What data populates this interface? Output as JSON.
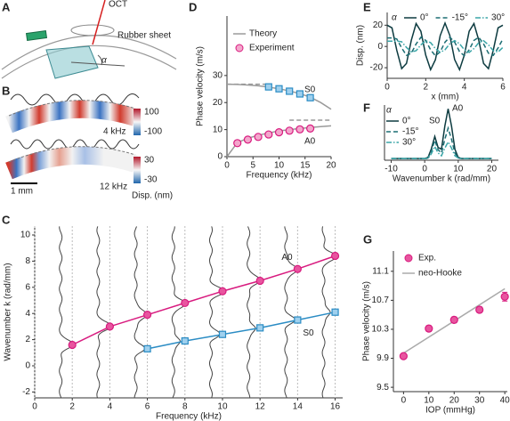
{
  "panel_labels": [
    "A",
    "B",
    "C",
    "D",
    "E",
    "F",
    "G"
  ],
  "schematic": {
    "oct": "OCT",
    "sheet": "Rubber sheet",
    "angle": "α"
  },
  "heatmaps": {
    "panels": [
      {
        "frequency": "4 kHz",
        "colorbar_max": "100",
        "colorbar_min": "-100"
      },
      {
        "frequency": "12 kHz",
        "colorbar_max": "30",
        "colorbar_min": "-30"
      }
    ],
    "scale_bar": "1 mm",
    "colorbar_label": "Disp. (nm)"
  },
  "chart_data": [
    {
      "type": "line",
      "xlabel": "Frequency (kHz)",
      "ylabel": "Wavenumber k (rad/mm)",
      "xlim": [
        0,
        16.4
      ],
      "ylim": [
        -2.45,
        10.68
      ],
      "xticks": [
        0,
        2,
        4,
        6,
        8,
        10,
        12,
        14,
        16
      ],
      "yticks": [
        -2,
        0,
        2,
        4,
        6,
        8,
        10
      ],
      "grid": "x",
      "spectra": true,
      "series": [
        {
          "name": "A0",
          "color": "#d81b7f",
          "marker": "circle",
          "marker_fill": "#e8559f",
          "line": "solid",
          "x": [
            2,
            4,
            6,
            8,
            10,
            12,
            14,
            16
          ],
          "values": [
            1.6,
            3.0,
            3.9,
            4.8,
            5.7,
            6.5,
            7.4,
            8.4
          ]
        },
        {
          "name": "S0",
          "color": "#2b8cc4",
          "marker": "square",
          "marker_fill": "#9fd0ee",
          "line": "solid",
          "x": [
            6,
            8,
            10,
            12,
            14,
            16
          ],
          "values": [
            1.3,
            1.9,
            2.4,
            2.9,
            3.5,
            4.1
          ]
        }
      ]
    },
    {
      "type": "line",
      "xlabel": "Frequency (kHz)",
      "ylabel": "Phase velocity (m/s)",
      "xlim": [
        0,
        20
      ],
      "ylim": [
        0,
        52
      ],
      "xticks": [
        0,
        5,
        10,
        15,
        20
      ],
      "yticks": [
        0,
        10,
        20,
        30
      ],
      "legend": true,
      "annotations": [
        "S0",
        "A0"
      ],
      "series": [
        {
          "name": "Theory",
          "color": "#9a9a9a",
          "line": "solid",
          "x": [
            0,
            2,
            4,
            6,
            8,
            10,
            12,
            14,
            16,
            18,
            20
          ],
          "values": [
            26.8,
            26.7,
            26.5,
            26.2,
            25.7,
            25.1,
            24.3,
            23.3,
            22.0,
            20.0,
            17.5
          ]
        },
        {
          "color": "#9a9a9a",
          "line": "solid",
          "x": [
            0,
            2,
            4,
            6,
            8,
            10,
            12,
            14,
            16,
            18,
            20
          ],
          "values": [
            0,
            5.2,
            6.8,
            7.9,
            8.8,
            9.5,
            10.0,
            10.4,
            10.8,
            11.1,
            11.4
          ]
        },
        {
          "color": "#9a9a9a",
          "line": "dashed",
          "x": [
            0,
            8
          ],
          "values": [
            26.8,
            26.8
          ]
        },
        {
          "color": "#9a9a9a",
          "line": "dashed",
          "x": [
            12,
            20
          ],
          "values": [
            13.5,
            13.5
          ]
        },
        {
          "name": "Experiment",
          "color": "#d81b7f",
          "marker": "circle",
          "marker_fill": "#f4a6cc",
          "line": "none",
          "x": [
            2,
            4,
            6,
            8,
            10,
            12,
            14,
            16
          ],
          "values": [
            5.0,
            6.3,
            7.3,
            8.2,
            9.0,
            9.6,
            10.1,
            10.4
          ]
        },
        {
          "color": "#2b8cc4",
          "marker": "square",
          "marker_fill": "#9fd0ee",
          "line": "none",
          "x": [
            8,
            10,
            12,
            14,
            16
          ],
          "values": [
            25.8,
            25.1,
            24.2,
            23.2,
            21.8
          ]
        }
      ]
    },
    {
      "type": "line",
      "xlabel": "x (mm)",
      "ylabel": "Disp. (nm)",
      "xlim": [
        0,
        6
      ],
      "ylim": [
        -30,
        32
      ],
      "xticks": [
        0,
        2,
        4,
        6
      ],
      "yticks": [
        -20,
        0,
        20
      ],
      "legend": true,
      "legend_title": "α",
      "x": [
        0,
        0.25,
        0.5,
        0.75,
        1,
        1.25,
        1.5,
        1.75,
        2,
        2.25,
        2.5,
        2.75,
        3,
        3.25,
        3.5,
        3.75,
        4,
        4.25,
        4.5,
        4.75,
        5,
        5.25,
        5.5,
        5.75,
        6
      ],
      "series": [
        {
          "name": "0°",
          "color": "#0d3b40",
          "line": "solid",
          "values": [
            20,
            17.5,
            -3.5,
            -20.9,
            -16,
            5.8,
            21.5,
            14.2,
            -8.1,
            -21.9,
            -12.5,
            10.3,
            22,
            10.3,
            -12.3,
            -21.9,
            -8.1,
            14.2,
            21.5,
            5.9,
            -16,
            -20.9,
            -3.5,
            17.5,
            20
          ]
        },
        {
          "name": "-15°",
          "color": "#1c6e74",
          "line": "dashed",
          "values": [
            8,
            8,
            7,
            -1.4,
            -8.4,
            -6.4,
            2.3,
            8.6,
            5.7,
            -3.2,
            -8.8,
            -5,
            4.1,
            8.8,
            4.1,
            -4.9,
            -8.8,
            -3.2,
            5.7,
            8.6,
            2.4,
            -6.4,
            -8.4,
            -1.4,
            7
          ]
        },
        {
          "name": "30°",
          "color": "#3aa6a8",
          "line": "dashdot",
          "values": [
            5,
            5,
            5,
            4.4,
            -0.9,
            -5.2,
            -4,
            1.5,
            5.4,
            3.6,
            -2,
            -5.5,
            -3.1,
            2.6,
            5.5,
            2.6,
            -3.1,
            -5.5,
            -2,
            3.6,
            5.4,
            1.5,
            -4,
            -5.2,
            -0.9
          ]
        }
      ]
    },
    {
      "type": "line",
      "xlabel": "Wavenumber k (rad/mm)",
      "xlim": [
        -12,
        22
      ],
      "ylim": [
        0,
        1
      ],
      "xticks": [
        -10,
        0,
        10,
        20
      ],
      "legend": true,
      "legend_title": "α",
      "annotations": [
        "S0",
        "A0"
      ],
      "x": [
        -10,
        -9,
        -8,
        -7,
        -6,
        -5,
        -4,
        -3,
        -2,
        -1,
        0,
        1,
        2,
        3,
        4,
        5,
        6,
        7,
        8,
        9,
        10,
        11,
        12,
        13,
        14,
        15,
        16,
        17,
        18,
        19,
        20
      ],
      "series": [
        {
          "name": "0°",
          "color": "#0d3b40",
          "line": "solid",
          "values": [
            0.03,
            0.03,
            0.03,
            0.03,
            0.03,
            0.03,
            0.03,
            0.03,
            0.03,
            0.03,
            0.03,
            0.05,
            0.21,
            0.43,
            0.23,
            0.2,
            0.62,
            0.93,
            0.62,
            0.2,
            0.05,
            0.03,
            0.03,
            0.03,
            0.03,
            0.03,
            0.03,
            0.03,
            0.03,
            0.03,
            0.03
          ]
        },
        {
          "name": "-15°",
          "color": "#1c6e74",
          "line": "dashed",
          "values": [
            0.03,
            0.03,
            0.03,
            0.03,
            0.03,
            0.03,
            0.03,
            0.03,
            0.03,
            0.03,
            0.03,
            0.04,
            0.17,
            0.36,
            0.19,
            0.13,
            0.38,
            0.58,
            0.38,
            0.13,
            0.04,
            0.03,
            0.03,
            0.03,
            0.03,
            0.03,
            0.03,
            0.03,
            0.03,
            0.03,
            0.03
          ]
        },
        {
          "name": "30°",
          "color": "#3aa6a8",
          "line": "dashdot",
          "values": [
            0.03,
            0.03,
            0.03,
            0.03,
            0.03,
            0.03,
            0.03,
            0.03,
            0.03,
            0.03,
            0.03,
            0.03,
            0.12,
            0.25,
            0.13,
            0.08,
            0.22,
            0.33,
            0.22,
            0.08,
            0.04,
            0.03,
            0.03,
            0.03,
            0.03,
            0.03,
            0.03,
            0.03,
            0.03,
            0.03,
            0.03
          ]
        }
      ]
    },
    {
      "type": "line",
      "xlabel": "IOP (mmHg)",
      "ylabel": "Phase velocity (m/s)",
      "xlim": [
        -4,
        41
      ],
      "ylim": [
        9.44,
        11.38
      ],
      "xticks": [
        0,
        10,
        20,
        30,
        40
      ],
      "yticks": [
        9.5,
        9.9,
        10.3,
        10.7,
        11.1
      ],
      "legend": true,
      "series": [
        {
          "name": "Exp.",
          "color": "#d81b7f",
          "marker": "circle",
          "marker_fill": "#e8559f",
          "line": "none",
          "x": [
            0,
            10,
            20,
            30,
            40
          ],
          "values": [
            9.93,
            10.31,
            10.43,
            10.57,
            10.75
          ],
          "errors": [
            0.02,
            0.04,
            0.04,
            0.04,
            0.06
          ]
        },
        {
          "name": "neo-Hooke",
          "color": "#aaaaaa",
          "line": "solid",
          "x": [
            0,
            40
          ],
          "values": [
            9.97,
            10.86
          ]
        }
      ]
    }
  ]
}
